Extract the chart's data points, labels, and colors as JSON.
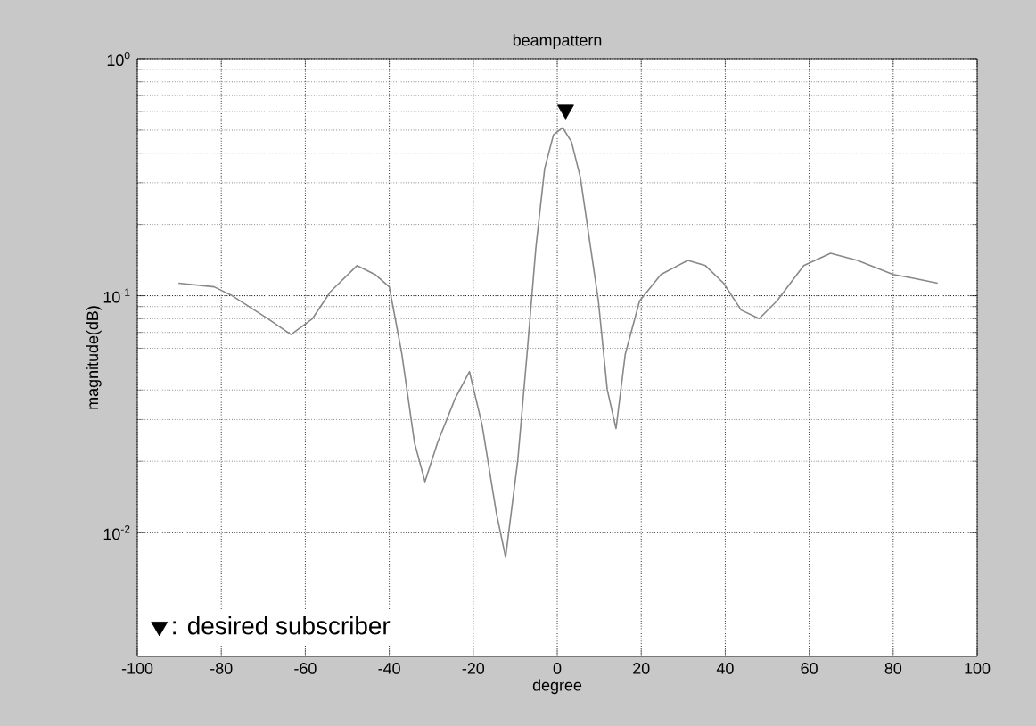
{
  "chart_data": {
    "type": "line",
    "title": "beampattern",
    "xlabel": "degree",
    "ylabel": "magnitude(dB)",
    "log": "y",
    "grid": true,
    "legend": "bottom left",
    "xlim": [
      -100,
      100
    ],
    "xticks": [
      -100,
      -80,
      -60,
      -40,
      -20,
      0,
      20,
      40,
      60,
      80,
      100
    ],
    "ylim": [
      0.003,
      1
    ],
    "yticks": [
      {
        "value": 0.01,
        "label": "10$^{-2}$"
      },
      {
        "value": 0.1,
        "label": "10$^{-1}$"
      },
      {
        "value": 1,
        "label": "10$^{0}$"
      }
    ],
    "series": [
      {
        "color": "#888888",
        "marker": "none",
        "x": [
          -90.2,
          -81.7,
          -77.4,
          -68.9,
          -63.4,
          -58.3,
          -54.0,
          -47.7,
          -43.4,
          -40.0,
          -37.0,
          -34.0,
          -31.5,
          -28.5,
          -24.3,
          -20.9,
          -17.9,
          -14.5,
          -12.3,
          -9.4,
          -7.2,
          -5.1,
          -3.0,
          -0.9,
          1.3,
          3.4,
          5.5,
          9.8,
          11.9,
          14.0,
          16.2,
          19.6,
          24.7,
          31.1,
          35.3,
          39.6,
          43.8,
          48.1,
          52.3,
          58.7,
          65.1,
          71.5,
          80.0,
          84.3,
          90.6
        ],
        "values": [
          0.113,
          0.109,
          0.1,
          0.08,
          0.0686,
          0.08,
          0.104,
          0.134,
          0.123,
          0.109,
          0.0567,
          0.024,
          0.0164,
          0.024,
          0.0369,
          0.0478,
          0.0285,
          0.0121,
          0.00787,
          0.0202,
          0.0567,
          0.159,
          0.344,
          0.478,
          0.512,
          0.446,
          0.316,
          0.095,
          0.0402,
          0.0275,
          0.0567,
          0.095,
          0.123,
          0.141,
          0.134,
          0.113,
          0.087,
          0.08,
          0.095,
          0.134,
          0.151,
          0.141,
          0.123,
          0.119,
          0.113
        ]
      },
      {
        "type": "scatter",
        "name": ": desired subscriber",
        "color": "#000000",
        "marker": "triangle",
        "x": [
          2
        ],
        "values": [
          0.61
        ]
      }
    ]
  }
}
